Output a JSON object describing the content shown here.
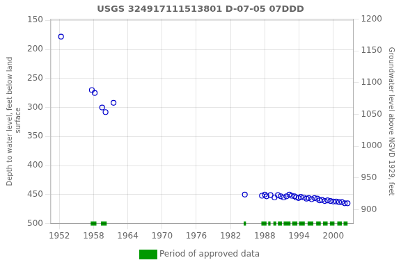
{
  "chart_data": {
    "type": "scatter",
    "title": "USGS 324917111513801 D-07-05 07DDD",
    "ylabel": "Depth to water level, feet below land\n surface",
    "y2label": "Groundwater level above NGVD 1929, feet",
    "xlim": [
      1950.5,
      2003.5
    ],
    "xticks": [
      1952,
      1958,
      1964,
      1970,
      1976,
      1982,
      1988,
      1994,
      2000
    ],
    "ylim": [
      500,
      148
    ],
    "yticks": [
      150,
      200,
      250,
      300,
      350,
      400,
      450,
      500
    ],
    "y2lim": [
      878,
      1200
    ],
    "y2ticks": [
      900,
      950,
      1000,
      1050,
      1100,
      1150,
      1200
    ],
    "grid": true,
    "legend": "bottom",
    "series": [
      {
        "type": "scatter",
        "color": "#0000cc",
        "marker": "circle",
        "x": [
          1952.3,
          1957.7,
          1958.2,
          1959.5,
          1960.1,
          1961.5,
          1984.5,
          1987.5,
          1988.0,
          1988.3,
          1989.0,
          1989.7,
          1990.3,
          1990.8,
          1991.3,
          1991.8,
          1992.3,
          1992.7,
          1993.2,
          1993.5,
          1993.9,
          1994.3,
          1994.8,
          1995.3,
          1995.7,
          1996.2,
          1996.7,
          1997.2,
          1997.6,
          1998.0,
          1998.5,
          1999.0,
          1999.5,
          2000.0,
          2000.5,
          2001.0,
          2001.5,
          2002.0,
          2002.5
        ],
        "values": [
          178,
          270,
          275,
          300,
          308,
          292,
          450,
          452,
          450,
          453,
          451,
          455,
          451,
          453,
          455,
          453,
          450,
          452,
          453,
          455,
          456,
          454,
          455,
          457,
          456,
          458,
          456,
          457,
          460,
          459,
          461,
          460,
          461,
          462,
          462,
          463,
          463,
          465,
          465
        ]
      },
      {
        "name": "Period of approved data",
        "color": "#009900",
        "periods": [
          [
            1957.5,
            1958.5
          ],
          [
            1959.3,
            1960.3
          ],
          [
            1984.3,
            1984.7
          ],
          [
            1987.4,
            1988.3
          ],
          [
            1988.6,
            1989.0
          ],
          [
            1989.5,
            1990.0
          ],
          [
            1990.3,
            1991.0
          ],
          [
            1991.3,
            1992.5
          ],
          [
            1992.8,
            1993.7
          ],
          [
            1994.0,
            1995.0
          ],
          [
            1995.5,
            1996.5
          ],
          [
            1997.0,
            1997.8
          ],
          [
            1998.2,
            1999.0
          ],
          [
            1999.4,
            2000.2
          ],
          [
            2000.7,
            2001.5
          ],
          [
            2001.8,
            2002.5
          ]
        ]
      }
    ]
  }
}
